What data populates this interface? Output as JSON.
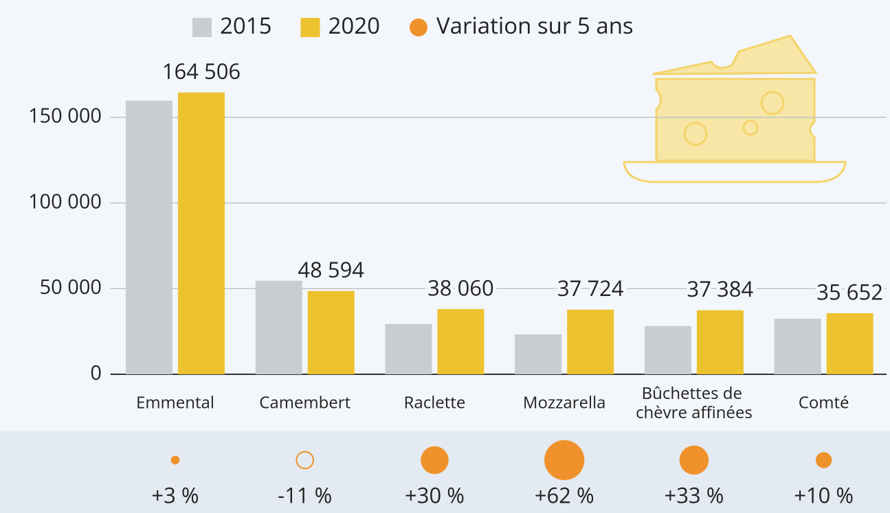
{
  "chart_data": {
    "type": "bar",
    "categories": [
      "Emmental",
      "Camembert",
      "Raclette",
      "Mozzarella",
      "Bûchettes de chèvre affinées",
      "Comté"
    ],
    "series": [
      {
        "name": "2015",
        "color": "#c9ccd0",
        "values": [
          159700,
          54600,
          29300,
          23300,
          28100,
          32400
        ]
      },
      {
        "name": "2020",
        "color": "#ecc22f",
        "values": [
          164506,
          48594,
          38060,
          37724,
          37384,
          35652
        ],
        "value_labels": [
          "164 506",
          "48 594",
          "38 060",
          "37 724",
          "37 384",
          "35 652"
        ]
      },
      {
        "name": "Variation sur 5 ans",
        "type": "bubble",
        "color": "#f0922b",
        "values": [
          3,
          -11,
          30,
          62,
          33,
          10
        ],
        "value_labels": [
          "+3 %",
          "-11 %",
          "+30 %",
          "+62 %",
          "+33 %",
          "+10 %"
        ]
      }
    ],
    "ylim": [
      0,
      170000
    ],
    "yticks": [
      0,
      {
        "value": 50000,
        "label": "50 000"
      },
      {
        "value": 100000,
        "label": "100 000"
      },
      {
        "value": 150000,
        "label": "150 000"
      }
    ],
    "grid": true
  }
}
